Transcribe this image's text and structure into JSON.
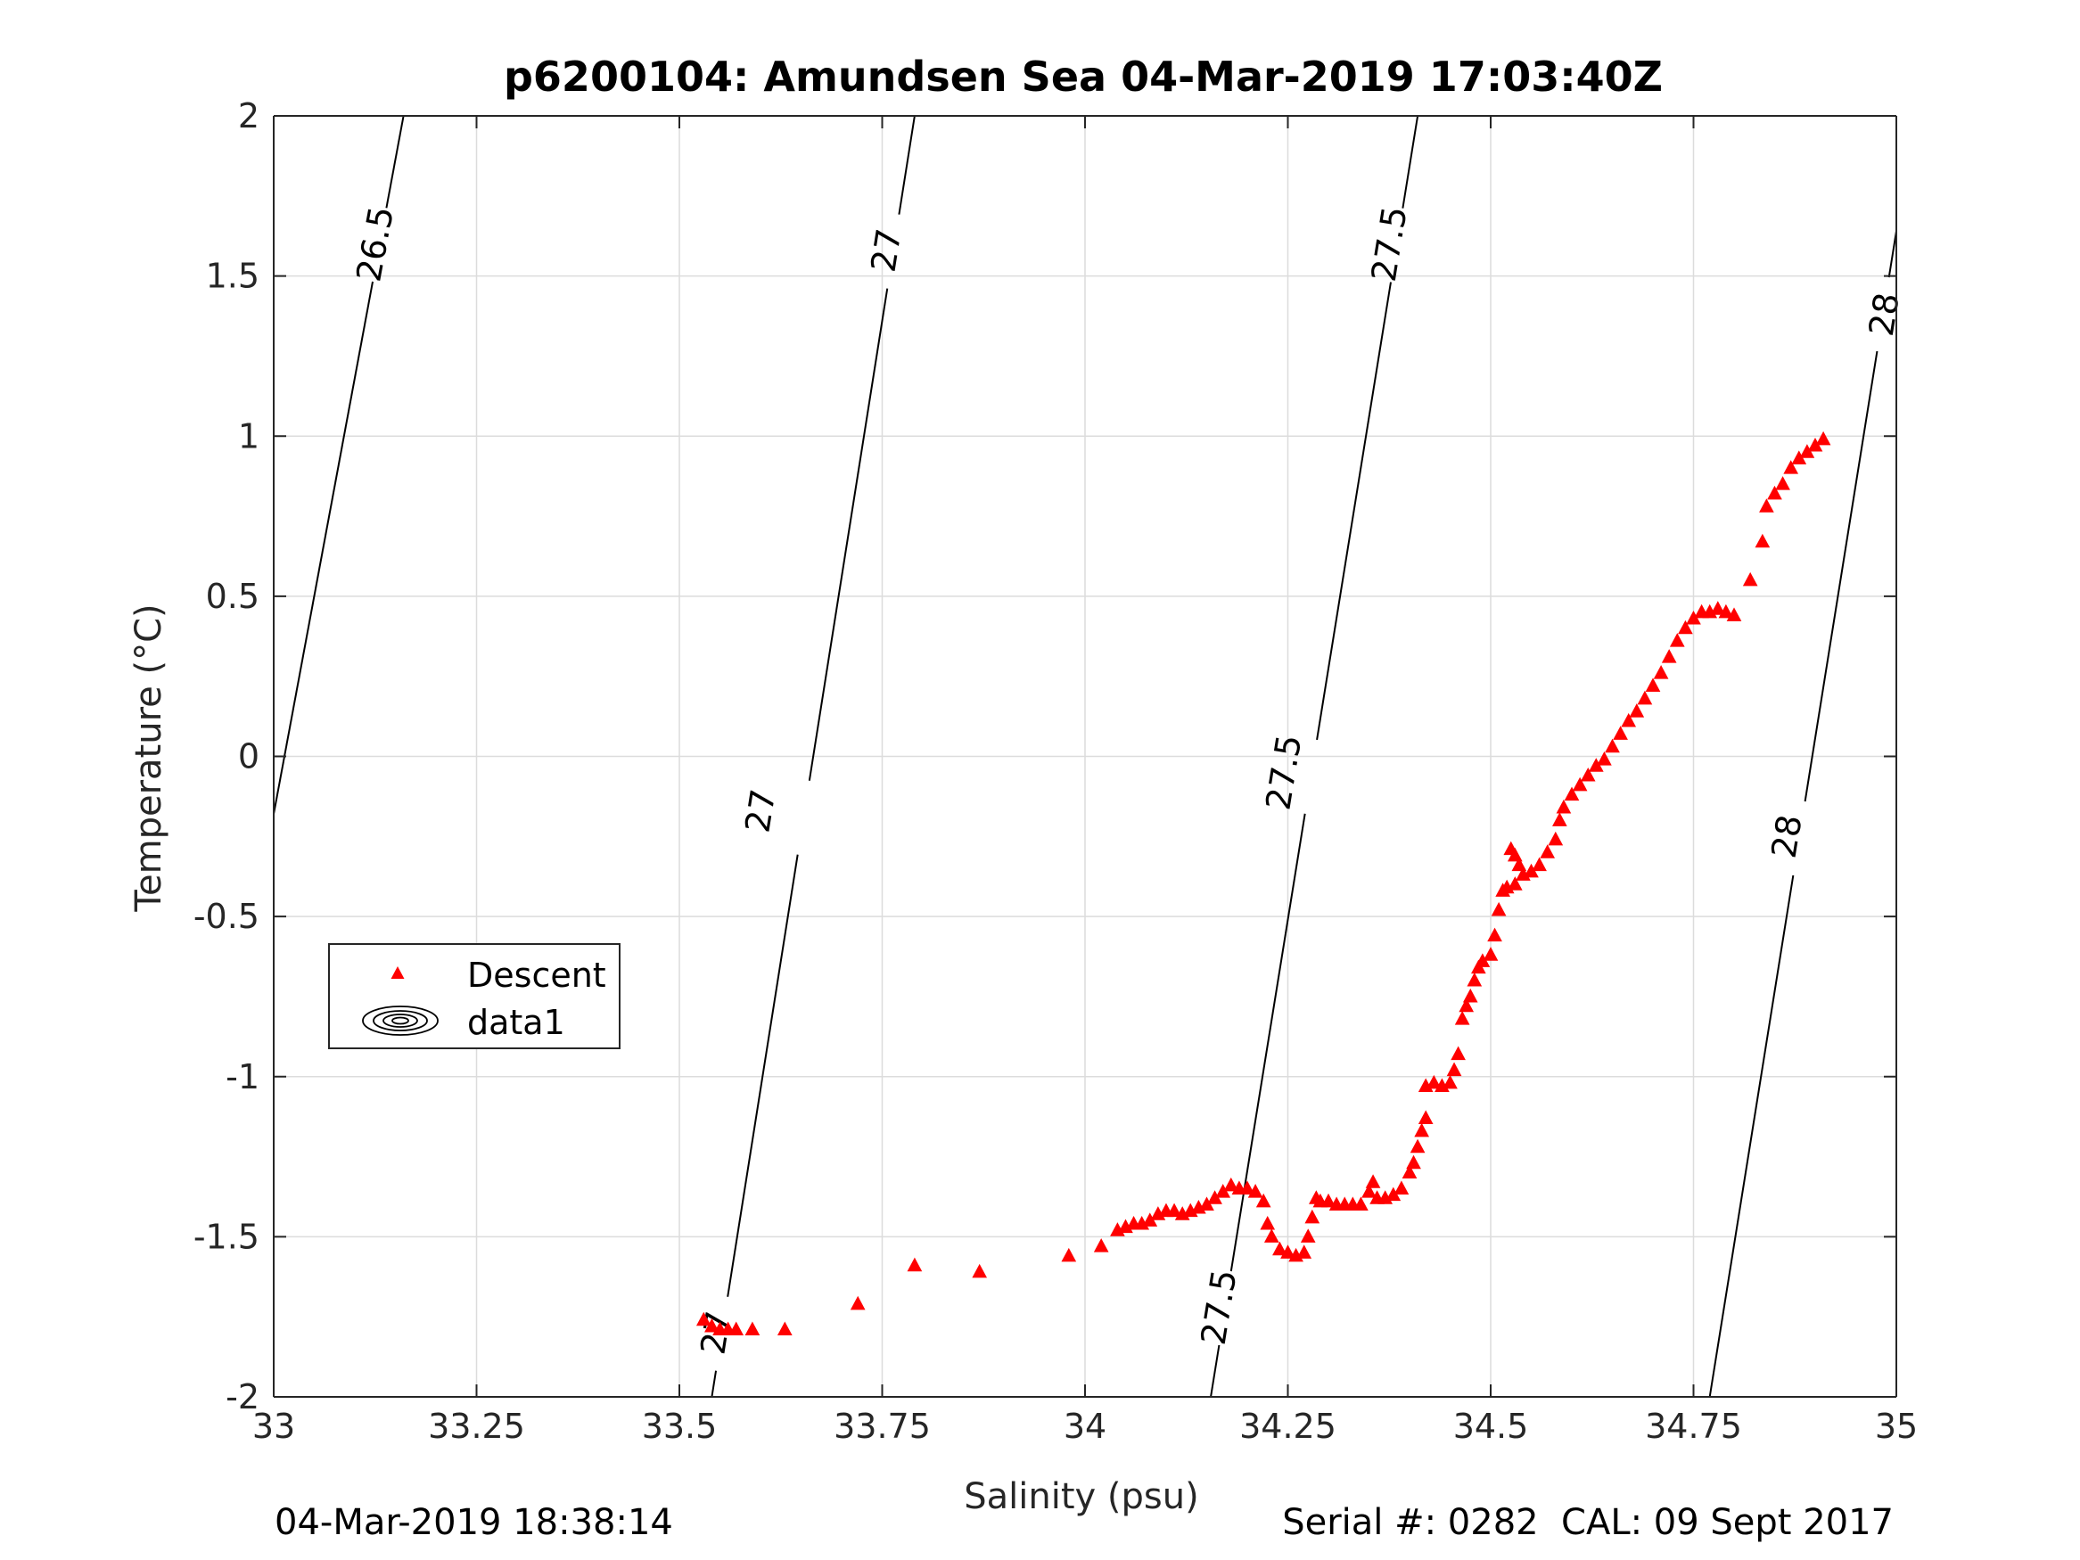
{
  "chart_data": {
    "type": "scatter",
    "title": "p6200104: Amundsen Sea 04-Mar-2019 17:03:40Z",
    "xlabel": "Salinity (psu)",
    "ylabel": "Temperature (°C)",
    "xlim": [
      33,
      35
    ],
    "ylim": [
      -2,
      2
    ],
    "xticks": [
      "33",
      "33.25",
      "33.5",
      "33.75",
      "34",
      "34.25",
      "34.5",
      "34.75",
      "35"
    ],
    "yticks": [
      "-2",
      "-1.5",
      "-1",
      "-0.5",
      "0",
      "0.5",
      "1",
      "1.5",
      "2"
    ],
    "grid": true,
    "legend_position": "lower-left",
    "legend": [
      {
        "label": "Descent",
        "symbol": "red-triangle"
      },
      {
        "label": "data1",
        "symbol": "contour-ellipses"
      }
    ],
    "colors": {
      "series": "#ff0000",
      "contour": "#000000",
      "grid": "#dcdcdc"
    },
    "series": [
      {
        "name": "Descent",
        "marker": "triangle",
        "points": [
          [
            33.53,
            -1.76
          ],
          [
            33.54,
            -1.78
          ],
          [
            33.55,
            -1.79
          ],
          [
            33.56,
            -1.79
          ],
          [
            33.57,
            -1.79
          ],
          [
            33.59,
            -1.79
          ],
          [
            33.63,
            -1.79
          ],
          [
            33.72,
            -1.71
          ],
          [
            33.79,
            -1.59
          ],
          [
            33.87,
            -1.61
          ],
          [
            33.98,
            -1.56
          ],
          [
            34.02,
            -1.53
          ],
          [
            34.04,
            -1.48
          ],
          [
            34.05,
            -1.47
          ],
          [
            34.06,
            -1.46
          ],
          [
            34.07,
            -1.46
          ],
          [
            34.08,
            -1.45
          ],
          [
            34.09,
            -1.43
          ],
          [
            34.1,
            -1.42
          ],
          [
            34.11,
            -1.42
          ],
          [
            34.12,
            -1.43
          ],
          [
            34.13,
            -1.42
          ],
          [
            34.14,
            -1.41
          ],
          [
            34.15,
            -1.4
          ],
          [
            34.16,
            -1.38
          ],
          [
            34.17,
            -1.36
          ],
          [
            34.18,
            -1.34
          ],
          [
            34.19,
            -1.35
          ],
          [
            34.2,
            -1.35
          ],
          [
            34.21,
            -1.36
          ],
          [
            34.22,
            -1.39
          ],
          [
            34.225,
            -1.46
          ],
          [
            34.23,
            -1.5
          ],
          [
            34.24,
            -1.54
          ],
          [
            34.25,
            -1.55
          ],
          [
            34.26,
            -1.56
          ],
          [
            34.27,
            -1.55
          ],
          [
            34.275,
            -1.5
          ],
          [
            34.28,
            -1.44
          ],
          [
            34.285,
            -1.38
          ],
          [
            34.29,
            -1.39
          ],
          [
            34.3,
            -1.39
          ],
          [
            34.31,
            -1.4
          ],
          [
            34.32,
            -1.4
          ],
          [
            34.33,
            -1.4
          ],
          [
            34.34,
            -1.4
          ],
          [
            34.35,
            -1.36
          ],
          [
            34.355,
            -1.33
          ],
          [
            34.36,
            -1.38
          ],
          [
            34.37,
            -1.38
          ],
          [
            34.38,
            -1.37
          ],
          [
            34.39,
            -1.35
          ],
          [
            34.4,
            -1.3
          ],
          [
            34.405,
            -1.27
          ],
          [
            34.41,
            -1.22
          ],
          [
            34.415,
            -1.17
          ],
          [
            34.42,
            -1.13
          ],
          [
            34.42,
            -1.03
          ],
          [
            34.43,
            -1.02
          ],
          [
            34.44,
            -1.03
          ],
          [
            34.45,
            -1.02
          ],
          [
            34.455,
            -0.98
          ],
          [
            34.46,
            -0.93
          ],
          [
            34.465,
            -0.82
          ],
          [
            34.47,
            -0.78
          ],
          [
            34.475,
            -0.75
          ],
          [
            34.48,
            -0.7
          ],
          [
            34.485,
            -0.66
          ],
          [
            34.49,
            -0.64
          ],
          [
            34.5,
            -0.62
          ],
          [
            34.505,
            -0.56
          ],
          [
            34.51,
            -0.48
          ],
          [
            34.515,
            -0.42
          ],
          [
            34.52,
            -0.41
          ],
          [
            34.53,
            -0.4
          ],
          [
            34.525,
            -0.29
          ],
          [
            34.53,
            -0.31
          ],
          [
            34.535,
            -0.34
          ],
          [
            34.54,
            -0.37
          ],
          [
            34.55,
            -0.36
          ],
          [
            34.56,
            -0.34
          ],
          [
            34.57,
            -0.3
          ],
          [
            34.58,
            -0.26
          ],
          [
            34.585,
            -0.2
          ],
          [
            34.59,
            -0.16
          ],
          [
            34.6,
            -0.12
          ],
          [
            34.61,
            -0.09
          ],
          [
            34.62,
            -0.06
          ],
          [
            34.63,
            -0.03
          ],
          [
            34.64,
            -0.01
          ],
          [
            34.65,
            0.03
          ],
          [
            34.66,
            0.07
          ],
          [
            34.67,
            0.11
          ],
          [
            34.68,
            0.14
          ],
          [
            34.69,
            0.18
          ],
          [
            34.7,
            0.22
          ],
          [
            34.71,
            0.26
          ],
          [
            34.72,
            0.31
          ],
          [
            34.73,
            0.36
          ],
          [
            34.74,
            0.4
          ],
          [
            34.75,
            0.43
          ],
          [
            34.76,
            0.45
          ],
          [
            34.77,
            0.45
          ],
          [
            34.78,
            0.46
          ],
          [
            34.79,
            0.45
          ],
          [
            34.8,
            0.44
          ],
          [
            34.82,
            0.55
          ],
          [
            34.835,
            0.67
          ],
          [
            34.84,
            0.78
          ],
          [
            34.85,
            0.82
          ],
          [
            34.86,
            0.85
          ],
          [
            34.87,
            0.9
          ],
          [
            34.88,
            0.93
          ],
          [
            34.89,
            0.95
          ],
          [
            34.9,
            0.97
          ],
          [
            34.91,
            0.99
          ]
        ]
      }
    ],
    "contours": [
      {
        "label": "26.5",
        "lines": [
          [
            [
              33.0,
              -0.18
            ],
            [
              33.16,
              2.0
            ]
          ]
        ],
        "label_positions": [
          [
            33.125,
            1.6
          ]
        ]
      },
      {
        "label": "27",
        "lines": [
          [
            [
              33.54,
              -2.0
            ],
            [
              33.79,
              2.0
            ]
          ]
        ],
        "label_positions": [
          [
            33.6,
            -0.17
          ],
          [
            33.755,
            1.58
          ],
          [
            33.545,
            -1.8
          ]
        ]
      },
      {
        "label": "27.5",
        "lines": [
          [
            [
              34.155,
              -2.0
            ],
            [
              34.41,
              2.0
            ]
          ]
        ],
        "label_positions": [
          [
            34.245,
            -0.05
          ],
          [
            34.375,
            1.6
          ],
          [
            34.165,
            -1.72
          ]
        ]
      },
      {
        "label": "28",
        "lines": [
          [
            [
              34.77,
              -2.0
            ],
            [
              35.0,
              1.64
            ]
          ]
        ],
        "label_positions": [
          [
            34.865,
            -0.25
          ],
          [
            34.985,
            1.38
          ]
        ]
      }
    ]
  },
  "footer": {
    "timestamp": "04-Mar-2019 18:38:14",
    "serial": "Serial #: 0282  CAL: 09 Sept 2017"
  }
}
